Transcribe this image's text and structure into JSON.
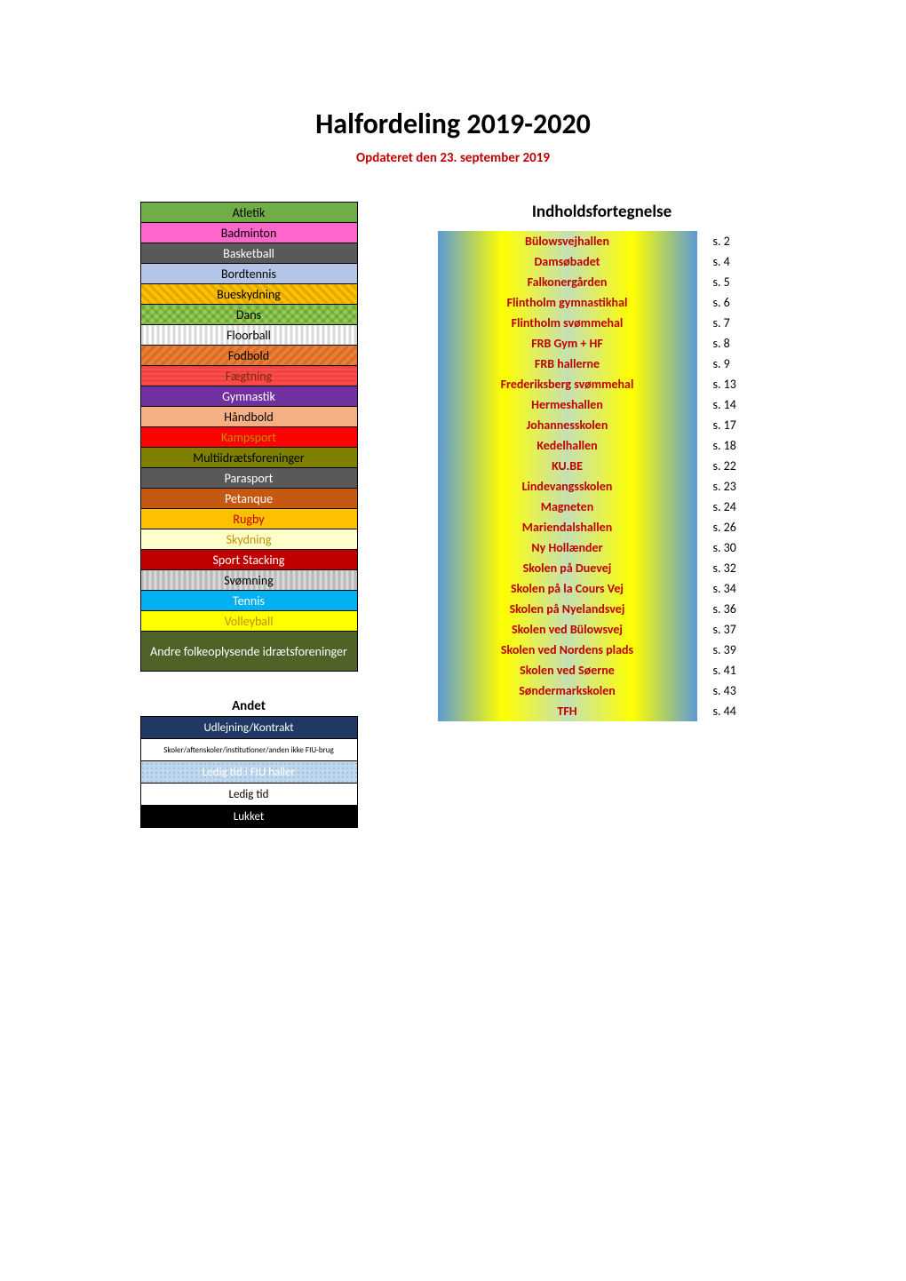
{
  "title": "Halfordeling 2019-2020",
  "subtitle": "Opdateret den 23. september 2019",
  "sports": [
    {
      "label": "Atletik",
      "bg": "#70ad47",
      "fg": "#000000",
      "pattern": ""
    },
    {
      "label": "Badminton",
      "bg": "#ff66cc",
      "fg": "#000000",
      "pattern": ""
    },
    {
      "label": "Basketball",
      "bg": "#595959",
      "fg": "#ffffff",
      "pattern": ""
    },
    {
      "label": "Bordtennis",
      "bg": "#b4c6e7",
      "fg": "#000000",
      "pattern": ""
    },
    {
      "label": "Bueskydning",
      "bg": "#ffc000",
      "fg": "#000000",
      "pattern": "stripes-diag"
    },
    {
      "label": "Dans",
      "bg": "#92d050",
      "fg": "#000000",
      "pattern": "stripes-cross"
    },
    {
      "label": "Floorball",
      "bg": "#ffffff",
      "fg": "#000000",
      "pattern": "stripes-vert"
    },
    {
      "label": "Fodbold",
      "bg": "#ed7d31",
      "fg": "#000000",
      "pattern": "stripes-diag-rev"
    },
    {
      "label": "Fægtning",
      "bg": "#ff4b4b",
      "fg": "#7f2a00",
      "pattern": "stripes-horiz"
    },
    {
      "label": "Gymnastik",
      "bg": "#7030a0",
      "fg": "#ffffff",
      "pattern": ""
    },
    {
      "label": "Håndbold",
      "bg": "#f4b084",
      "fg": "#000000",
      "pattern": ""
    },
    {
      "label": "Kampsport",
      "bg": "#ff0000",
      "fg": "#c09000",
      "pattern": ""
    },
    {
      "label": "Multiidrætsforeninger",
      "bg": "#808000",
      "fg": "#000000",
      "pattern": ""
    },
    {
      "label": "Parasport",
      "bg": "#595959",
      "fg": "#ffffff",
      "pattern": ""
    },
    {
      "label": "Petanque",
      "bg": "#c65911",
      "fg": "#ffffff",
      "pattern": ""
    },
    {
      "label": "Rugby",
      "bg": "#ffc000",
      "fg": "#c00000",
      "pattern": ""
    },
    {
      "label": "Skydning",
      "bg": "#ffffcc",
      "fg": "#c09000",
      "pattern": ""
    },
    {
      "label": "Sport Stacking",
      "bg": "#c00000",
      "fg": "#ffffff",
      "pattern": ""
    },
    {
      "label": "Svømning",
      "bg": "#d9d9d9",
      "fg": "#000000",
      "pattern": "stripes-vert"
    },
    {
      "label": "Tennis",
      "bg": "#00b0f0",
      "fg": "#ffffff",
      "pattern": ""
    },
    {
      "label": "Volleyball",
      "bg": "#ffff00",
      "fg": "#c09000",
      "pattern": ""
    },
    {
      "label": "Andre folkeoplysende idrætsforeninger",
      "bg": "#4f6228",
      "fg": "#ffffff",
      "pattern": "",
      "twoLine": true
    }
  ],
  "andet_heading": "Andet",
  "andet": [
    {
      "label": "Udlejning/Kontrakt",
      "bg": "#1f3864",
      "fg": "#ffffff",
      "small": false,
      "pattern": ""
    },
    {
      "label": "Skoler/aftenskoler/institutioner/anden ikke FIU-brug",
      "bg": "#ffffff",
      "fg": "#000000",
      "small": true,
      "pattern": ""
    },
    {
      "label": "Ledig tid i FIU haller",
      "bg": "#bdd7ee",
      "fg": "#ffffff",
      "small": false,
      "pattern": "dots"
    },
    {
      "label": "Ledig tid",
      "bg": "#ffffff",
      "fg": "#000000",
      "small": false,
      "pattern": ""
    },
    {
      "label": "Lukket",
      "bg": "#000000",
      "fg": "#ffffff",
      "small": false,
      "pattern": ""
    }
  ],
  "toc_heading": "Indholdsfortegnelse",
  "toc_gradient_a": "#5b9bd5",
  "toc_gradient_b": "#c5e0b4",
  "toc_gradient_c": "#ffff00",
  "toc_text_color": "#c00000",
  "toc": [
    {
      "label": "Bülowsvejhallen",
      "page": "2"
    },
    {
      "label": "Damsøbadet",
      "page": "4"
    },
    {
      "label": "Falkonergården",
      "page": "5"
    },
    {
      "label": "Flintholm gymnastikhal",
      "page": "6"
    },
    {
      "label": "Flintholm svømmehal",
      "page": "7"
    },
    {
      "label": "FRB Gym + HF",
      "page": "8"
    },
    {
      "label": "FRB hallerne",
      "page": "9"
    },
    {
      "label": "Frederiksberg svømmehal",
      "page": "13"
    },
    {
      "label": "Hermeshallen",
      "page": "14"
    },
    {
      "label": "Johannesskolen",
      "page": "17"
    },
    {
      "label": "Kedelhallen",
      "page": "18"
    },
    {
      "label": "KU.BE",
      "page": "22"
    },
    {
      "label": "Lindevangsskolen",
      "page": "23"
    },
    {
      "label": "Magneten",
      "page": "24"
    },
    {
      "label": "Mariendalshallen",
      "page": "26"
    },
    {
      "label": "Ny Hollænder",
      "page": "30"
    },
    {
      "label": "Skolen på Duevej",
      "page": "32"
    },
    {
      "label": "Skolen på la Cours Vej",
      "page": "34"
    },
    {
      "label": "Skolen på Nyelandsvej",
      "page": "36"
    },
    {
      "label": "Skolen ved Bülowsvej",
      "page": "37"
    },
    {
      "label": "Skolen ved Nordens plads",
      "page": "39"
    },
    {
      "label": "Skolen ved Søerne",
      "page": "41"
    },
    {
      "label": "Søndermarkskolen",
      "page": "43"
    },
    {
      "label": "TFH",
      "page": "44"
    }
  ]
}
